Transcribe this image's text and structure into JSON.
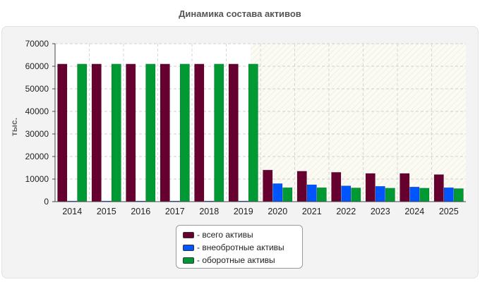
{
  "chart_data": {
    "type": "bar",
    "title": "Динамика состава активов",
    "ylabel": "тыс.",
    "xlabel": "",
    "ylim": [
      0,
      70000
    ],
    "yticks": [
      0,
      10000,
      20000,
      30000,
      40000,
      50000,
      60000,
      70000
    ],
    "grid": true,
    "legend_position": "bottom-center",
    "categories": [
      "2014",
      "2015",
      "2016",
      "2017",
      "2018",
      "2019",
      "2020",
      "2021",
      "2022",
      "2023",
      "2024",
      "2025"
    ],
    "series": [
      {
        "name": "- всего активы",
        "color": "#66002f",
        "values": [
          61000,
          61000,
          61000,
          61000,
          61000,
          61000,
          14000,
          13500,
          13000,
          12500,
          12500,
          12000
        ]
      },
      {
        "name": "- внеобротные активы",
        "color": "#0055ff",
        "values": [
          300,
          300,
          300,
          300,
          300,
          300,
          8000,
          7500,
          7000,
          6800,
          6500,
          6200
        ]
      },
      {
        "name": "- оборотные активы",
        "color": "#009933",
        "values": [
          61000,
          61000,
          61000,
          61000,
          61000,
          61000,
          6200,
          6200,
          6100,
          6000,
          6000,
          5800
        ]
      }
    ]
  }
}
